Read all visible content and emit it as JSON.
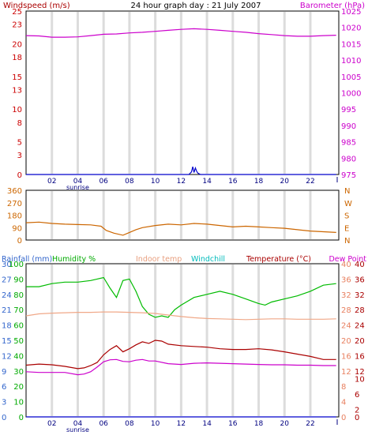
{
  "chart_data": [
    {
      "type": "line",
      "title": "24 hour graph day : 21 July 2007",
      "ylabel_left": "Windspeed (m/s)",
      "ylabel_right": "Barometer (hPa)",
      "grid": true,
      "x_ticks": [
        "02",
        "04",
        "06",
        "08",
        "10",
        "12",
        "14",
        "16",
        "18",
        "20",
        "22"
      ],
      "x_tick_values": [
        2,
        4,
        6,
        8,
        10,
        12,
        14,
        16,
        18,
        20,
        22
      ],
      "x_annotation": {
        "label": "sunrise",
        "x": 4
      },
      "xlim": [
        0,
        24.2
      ],
      "ylim_left": [
        0,
        25
      ],
      "ylim_right": [
        975,
        1025
      ],
      "left_ticks": [
        0,
        3,
        5,
        8,
        10,
        13,
        15,
        18,
        20,
        23,
        25
      ],
      "right_ticks": [
        975,
        980,
        985,
        990,
        995,
        1000,
        1005,
        1010,
        1015,
        1020,
        1025
      ],
      "series": [
        {
          "name": "Barometer (hPa)",
          "axis": "right",
          "color": "#cc00cc",
          "x": [
            0,
            1,
            2,
            3,
            4,
            5,
            6,
            7,
            8,
            9,
            10,
            11,
            12,
            13,
            14,
            15,
            16,
            17,
            18,
            19,
            20,
            21,
            22,
            23,
            24
          ],
          "y": [
            1017.5,
            1017.4,
            1017.0,
            1017.0,
            1017.1,
            1017.5,
            1017.9,
            1018.0,
            1018.3,
            1018.5,
            1018.8,
            1019.1,
            1019.4,
            1019.6,
            1019.4,
            1019.1,
            1018.8,
            1018.5,
            1018.1,
            1017.8,
            1017.5,
            1017.3,
            1017.3,
            1017.5,
            1017.6
          ]
        },
        {
          "name": "Windspeed (m/s)",
          "axis": "left",
          "color": "#0000cc",
          "x": [
            0,
            12.6,
            12.8,
            12.9,
            13.0,
            13.1,
            13.2,
            13.3,
            13.5,
            24
          ],
          "y": [
            0,
            0,
            0.4,
            1.2,
            0.3,
            1.0,
            0.5,
            0.2,
            0,
            0
          ]
        }
      ]
    },
    {
      "type": "line",
      "ylabel_right": "N W S E N",
      "right_labels": [
        "N",
        "W",
        "S",
        "E",
        "N"
      ],
      "grid": true,
      "xlim": [
        0,
        24.2
      ],
      "ylim": [
        0,
        360
      ],
      "left_ticks": [
        0,
        90,
        180,
        270,
        360
      ],
      "series": [
        {
          "name": "Wind direction",
          "color": "#cc6600",
          "x": [
            0,
            1,
            2,
            3,
            4,
            5,
            5.8,
            6.2,
            6.8,
            7.5,
            8.0,
            8.5,
            9,
            10,
            11,
            12,
            13,
            14,
            15,
            16,
            17,
            18,
            19,
            20,
            21,
            22,
            23,
            24
          ],
          "y": [
            125,
            130,
            120,
            115,
            112,
            110,
            100,
            70,
            50,
            35,
            55,
            75,
            90,
            105,
            115,
            110,
            120,
            115,
            105,
            95,
            100,
            95,
            90,
            85,
            75,
            65,
            60,
            55
          ]
        }
      ]
    },
    {
      "type": "line",
      "legend": [
        "Rainfall (mm)",
        "Humidity %",
        "Indoor temp",
        "Windchill",
        "Temperature (°C)",
        "Dew Point"
      ],
      "grid": true,
      "x_ticks": [
        "02",
        "04",
        "06",
        "08",
        "10",
        "12",
        "14",
        "16",
        "18",
        "20",
        "22"
      ],
      "x_tick_values": [
        2,
        4,
        6,
        8,
        10,
        12,
        14,
        16,
        18,
        20,
        22
      ],
      "x_annotation": {
        "label": "sunrise",
        "x": 4
      },
      "xlim": [
        0,
        24.2
      ],
      "ylim_rainfall": [
        0,
        30
      ],
      "ylim_humidity": [
        0,
        100
      ],
      "ylim_temp": [
        0,
        40
      ],
      "rainfall_ticks": [
        0,
        3,
        6,
        9,
        12,
        15,
        18,
        21,
        24,
        27,
        30
      ],
      "humidity_ticks": [
        0,
        10,
        20,
        30,
        40,
        50,
        60,
        70,
        80,
        90,
        100
      ],
      "temp_ticks_a": [
        0,
        4,
        8,
        12,
        16,
        20,
        24,
        28,
        32,
        36,
        40
      ],
      "temp_ticks_b": [
        0,
        2,
        6,
        10,
        12,
        16,
        20,
        24,
        28,
        32,
        36,
        40
      ],
      "series": [
        {
          "name": "Rainfall (mm)",
          "axis": "rainfall",
          "color": "#0000cc",
          "x": [
            0,
            24
          ],
          "y": [
            0,
            0
          ]
        },
        {
          "name": "Humidity %",
          "axis": "humidity",
          "color": "#00bb00",
          "x": [
            0,
            1,
            2,
            3,
            4,
            5,
            5.5,
            6,
            6.5,
            7,
            7.5,
            8,
            8.5,
            9,
            9.5,
            10,
            10.5,
            11,
            11.5,
            12,
            13,
            14,
            15,
            16,
            17,
            18,
            18.5,
            19,
            20,
            21,
            22,
            23,
            24
          ],
          "y": [
            85,
            85,
            87,
            88,
            88,
            89,
            90,
            91,
            84,
            78,
            89,
            90,
            82,
            72,
            67,
            65,
            66,
            65,
            70,
            73,
            78,
            80,
            82,
            80,
            77,
            74,
            73,
            75,
            77,
            79,
            82,
            86,
            87
          ]
        },
        {
          "name": "Indoor temp",
          "axis": "temp",
          "color": "#f0a888",
          "x": [
            0,
            1,
            2,
            3,
            4,
            5,
            6,
            7,
            8,
            9,
            10,
            11,
            12,
            13,
            14,
            15,
            16,
            17,
            18,
            19,
            20,
            21,
            22,
            23,
            24
          ],
          "y": [
            26.4,
            26.9,
            27.1,
            27.2,
            27.3,
            27.3,
            27.4,
            27.4,
            27.3,
            27.2,
            27.0,
            26.6,
            26.2,
            25.9,
            25.7,
            25.6,
            25.5,
            25.4,
            25.5,
            25.6,
            25.6,
            25.5,
            25.5,
            25.5,
            25.6
          ]
        },
        {
          "name": "Temperature (°C)",
          "axis": "temp",
          "color": "#aa0000",
          "x": [
            0,
            1,
            2,
            3,
            4,
            4.5,
            5,
            5.5,
            6,
            6.5,
            7,
            7.5,
            8,
            8.5,
            9,
            9.5,
            10,
            10.5,
            11,
            12,
            13,
            14,
            15,
            16,
            17,
            18,
            19,
            20,
            21,
            22,
            23,
            24
          ],
          "y": [
            13.5,
            13.8,
            13.6,
            13.2,
            12.6,
            12.8,
            13.4,
            14.2,
            16.2,
            17.6,
            18.6,
            17.0,
            17.8,
            18.8,
            19.6,
            19.2,
            20.0,
            19.8,
            19.0,
            18.6,
            18.4,
            18.2,
            17.8,
            17.6,
            17.6,
            17.8,
            17.5,
            17.0,
            16.4,
            15.8,
            15.0,
            15.0
          ]
        },
        {
          "name": "Dew Point",
          "axis": "temp",
          "color": "#cc00cc",
          "x": [
            0,
            1,
            2,
            3,
            4,
            4.5,
            5,
            5.5,
            6,
            6.5,
            7,
            7.5,
            8,
            8.5,
            9,
            9.5,
            10,
            11,
            12,
            13,
            14,
            15,
            16,
            17,
            18,
            19,
            20,
            21,
            22,
            23,
            24
          ],
          "y": [
            11.8,
            11.6,
            11.6,
            11.6,
            11.0,
            11.2,
            11.8,
            13.0,
            14.4,
            14.9,
            15.0,
            14.5,
            14.4,
            14.8,
            15.0,
            14.6,
            14.6,
            13.9,
            13.7,
            14.0,
            14.1,
            14.0,
            13.9,
            13.8,
            13.7,
            13.6,
            13.6,
            13.5,
            13.5,
            13.4,
            13.4
          ]
        }
      ]
    }
  ]
}
